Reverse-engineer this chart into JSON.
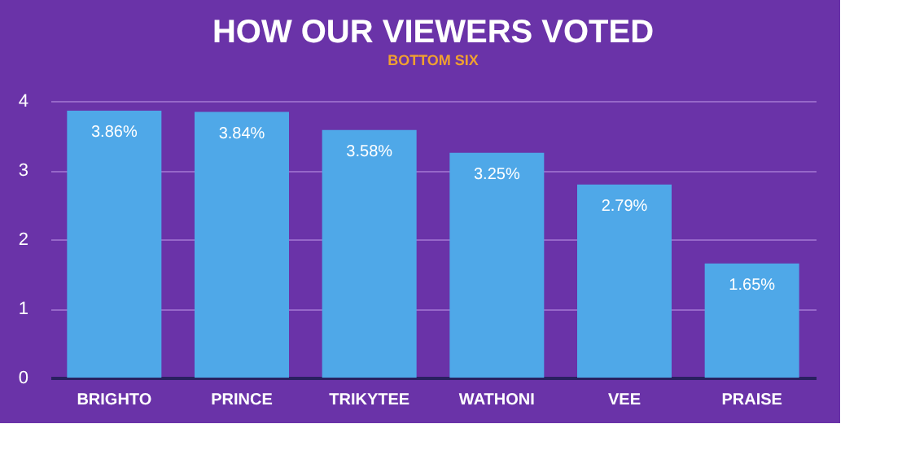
{
  "chart_data": {
    "type": "bar",
    "title": "HOW OUR VIEWERS VOTED",
    "subtitle": "BOTTOM SIX",
    "categories": [
      "BRIGHTO",
      "PRINCE",
      "TRIKYTEE",
      "WATHONI",
      "VEE",
      "PRAISE"
    ],
    "values": [
      3.86,
      3.84,
      3.58,
      3.25,
      2.79,
      1.65
    ],
    "value_labels": [
      "3.86%",
      "3.84%",
      "3.58%",
      "3.25%",
      "2.79%",
      "1.65%"
    ],
    "color": "#4fa8e8",
    "ylim": [
      0,
      4
    ],
    "yticks": [
      0,
      1,
      2,
      3,
      4
    ],
    "grid": "y"
  }
}
